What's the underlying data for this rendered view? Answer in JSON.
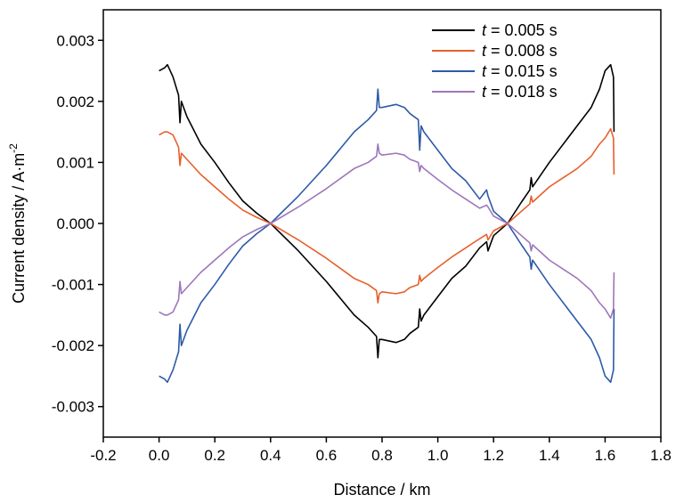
{
  "chart_data": {
    "type": "line",
    "xlabel": "Distance / km",
    "ylabel": {
      "main": "Current density / A·m",
      "superscript": "-2"
    },
    "xlim": [
      -0.2,
      1.8
    ],
    "ylim": [
      -0.0035,
      0.0035
    ],
    "x_ticks": [
      -0.2,
      0.0,
      0.2,
      0.4,
      0.6,
      0.8,
      1.0,
      1.2,
      1.4,
      1.6,
      1.8
    ],
    "x_tick_labels": [
      "-0.2",
      "0.0",
      "0.2",
      "0.4",
      "0.6",
      "0.8",
      "1.0",
      "1.2",
      "1.4",
      "1.6",
      "1.8"
    ],
    "y_ticks": [
      -0.003,
      -0.002,
      -0.001,
      0.0,
      0.001,
      0.002,
      0.003
    ],
    "y_tick_labels": [
      "-0.003",
      "-0.002",
      "-0.001",
      "0.000",
      "0.001",
      "0.002",
      "0.003"
    ],
    "grid": false,
    "legend_position": "top-right",
    "series": [
      {
        "name": "t = 0.005 s",
        "legend_var": "t",
        "legend_rest": " = 0.005 s",
        "color": "#000000",
        "x": [
          0.0,
          0.02,
          0.03,
          0.05,
          0.07,
          0.075,
          0.08,
          0.1,
          0.15,
          0.2,
          0.25,
          0.3,
          0.35,
          0.4,
          0.5,
          0.6,
          0.7,
          0.75,
          0.78,
          0.785,
          0.79,
          0.8,
          0.85,
          0.88,
          0.9,
          0.93,
          0.935,
          0.94,
          0.95,
          1.0,
          1.05,
          1.1,
          1.15,
          1.175,
          1.18,
          1.2,
          1.25,
          1.3,
          1.33,
          1.335,
          1.34,
          1.4,
          1.5,
          1.55,
          1.58,
          1.6,
          1.62,
          1.63,
          1.632
        ],
        "y": [
          0.0025,
          0.00255,
          0.0026,
          0.0024,
          0.0021,
          0.00165,
          0.002,
          0.00175,
          0.0013,
          0.001,
          0.00067,
          0.00037,
          0.00017,
          0.0,
          -0.00045,
          -0.00095,
          -0.0015,
          -0.0017,
          -0.00185,
          -0.0022,
          -0.0019,
          -0.0019,
          -0.00195,
          -0.0019,
          -0.0018,
          -0.0017,
          -0.0014,
          -0.0016,
          -0.0015,
          -0.0012,
          -0.0009,
          -0.0007,
          -0.0004,
          -0.0003,
          -0.00045,
          -0.0002,
          0.0,
          0.00035,
          0.00055,
          0.00075,
          0.0006,
          0.001,
          0.0016,
          0.0019,
          0.0022,
          0.0025,
          0.0026,
          0.0024,
          0.0015
        ]
      },
      {
        "name": "t = 0.008 s",
        "legend_var": "t",
        "legend_rest": " = 0.008 s",
        "color": "#e6602b",
        "x": [
          0.0,
          0.02,
          0.03,
          0.05,
          0.07,
          0.075,
          0.08,
          0.1,
          0.15,
          0.2,
          0.25,
          0.3,
          0.35,
          0.4,
          0.5,
          0.6,
          0.7,
          0.75,
          0.78,
          0.785,
          0.79,
          0.8,
          0.85,
          0.88,
          0.9,
          0.93,
          0.935,
          0.94,
          0.95,
          1.0,
          1.05,
          1.1,
          1.15,
          1.175,
          1.18,
          1.2,
          1.25,
          1.3,
          1.33,
          1.335,
          1.34,
          1.4,
          1.5,
          1.55,
          1.58,
          1.6,
          1.62,
          1.63,
          1.632
        ],
        "y": [
          0.00145,
          0.0015,
          0.0015,
          0.00145,
          0.00125,
          0.00095,
          0.00115,
          0.00105,
          0.0008,
          0.0006,
          0.0004,
          0.00022,
          0.0001,
          0.0,
          -0.00027,
          -0.00057,
          -0.0009,
          -0.001,
          -0.0011,
          -0.0013,
          -0.00115,
          -0.00112,
          -0.00115,
          -0.00112,
          -0.00105,
          -0.001,
          -0.00085,
          -0.00095,
          -0.0009,
          -0.00072,
          -0.00055,
          -0.0004,
          -0.00025,
          -0.00018,
          -0.00027,
          -0.00012,
          0.0,
          0.0002,
          0.00032,
          0.00045,
          0.00035,
          0.0006,
          0.0009,
          0.0011,
          0.0013,
          0.0014,
          0.00155,
          0.0014,
          0.0008
        ]
      },
      {
        "name": "t = 0.015 s",
        "legend_var": "t",
        "legend_rest": " = 0.015 s",
        "color": "#2d5aa8",
        "x": [
          0.0,
          0.02,
          0.03,
          0.05,
          0.07,
          0.075,
          0.08,
          0.1,
          0.15,
          0.2,
          0.25,
          0.3,
          0.35,
          0.4,
          0.5,
          0.6,
          0.7,
          0.75,
          0.78,
          0.785,
          0.79,
          0.8,
          0.85,
          0.88,
          0.9,
          0.93,
          0.935,
          0.94,
          0.95,
          1.0,
          1.05,
          1.1,
          1.15,
          1.175,
          1.18,
          1.2,
          1.25,
          1.3,
          1.33,
          1.335,
          1.34,
          1.4,
          1.5,
          1.55,
          1.58,
          1.6,
          1.62,
          1.63,
          1.632
        ],
        "y": [
          -0.0025,
          -0.00255,
          -0.0026,
          -0.0024,
          -0.0021,
          -0.00165,
          -0.002,
          -0.00175,
          -0.0013,
          -0.001,
          -0.00067,
          -0.00037,
          -0.00017,
          0.0,
          0.00045,
          0.00095,
          0.0015,
          0.0017,
          0.00185,
          0.0022,
          0.0019,
          0.0019,
          0.00195,
          0.0019,
          0.0018,
          0.0017,
          0.0012,
          0.0016,
          0.0015,
          0.0012,
          0.0009,
          0.0007,
          0.0004,
          0.00055,
          0.00045,
          0.0002,
          0.0,
          -0.00035,
          -0.00055,
          -0.00075,
          -0.0006,
          -0.001,
          -0.0016,
          -0.0019,
          -0.0022,
          -0.0025,
          -0.0026,
          -0.0024,
          -0.0014
        ]
      },
      {
        "name": "t = 0.018 s",
        "legend_var": "t",
        "legend_rest": " = 0.018 s",
        "color": "#9e76bc",
        "x": [
          0.0,
          0.02,
          0.03,
          0.05,
          0.07,
          0.075,
          0.08,
          0.1,
          0.15,
          0.2,
          0.25,
          0.3,
          0.35,
          0.4,
          0.5,
          0.6,
          0.7,
          0.75,
          0.78,
          0.785,
          0.79,
          0.8,
          0.85,
          0.88,
          0.9,
          0.93,
          0.935,
          0.94,
          0.95,
          1.0,
          1.05,
          1.1,
          1.15,
          1.175,
          1.18,
          1.2,
          1.25,
          1.3,
          1.33,
          1.335,
          1.34,
          1.4,
          1.5,
          1.55,
          1.58,
          1.6,
          1.62,
          1.63,
          1.632
        ],
        "y": [
          -0.00145,
          -0.0015,
          -0.0015,
          -0.00145,
          -0.00125,
          -0.00095,
          -0.00115,
          -0.00105,
          -0.0008,
          -0.0006,
          -0.0004,
          -0.00022,
          -0.0001,
          0.0,
          0.00027,
          0.00057,
          0.0009,
          0.001,
          0.0011,
          0.0013,
          0.00115,
          0.00112,
          0.00115,
          0.00112,
          0.00105,
          0.001,
          0.00085,
          0.00095,
          0.0009,
          0.00072,
          0.00055,
          0.0004,
          0.00025,
          0.0003,
          0.00027,
          0.00012,
          0.0,
          -0.0002,
          -0.00032,
          -0.00045,
          -0.00035,
          -0.0006,
          -0.0009,
          -0.0011,
          -0.0013,
          -0.0014,
          -0.00155,
          -0.0014,
          -0.0008
        ]
      }
    ]
  }
}
